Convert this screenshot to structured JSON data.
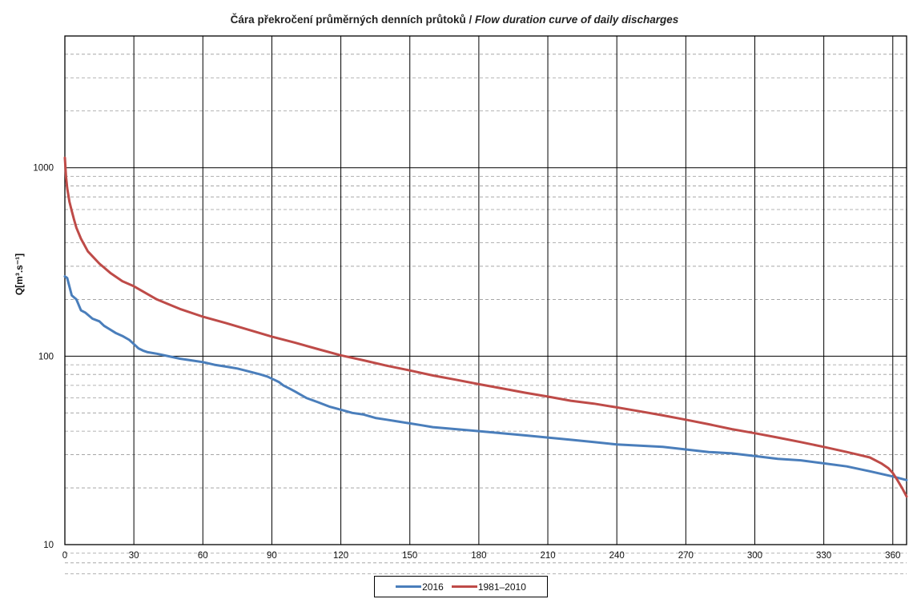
{
  "chart_data": {
    "type": "line",
    "title_cz": "Čára překročení průměrných denních průtoků / ",
    "title_en": "Flow duration curve of daily discharges",
    "xlabel": "",
    "ylabel": "Q[m³.s⁻¹]",
    "xlim": [
      0,
      366
    ],
    "ylim": [
      10,
      5000
    ],
    "yscale": "log",
    "x_ticks": [
      0,
      30,
      60,
      90,
      120,
      150,
      180,
      210,
      240,
      270,
      300,
      330,
      360
    ],
    "y_ticks": [
      10,
      100,
      1000
    ],
    "y_tick_labels": [
      "10",
      "100",
      "1000"
    ],
    "grid": true,
    "legend_position": "bottom",
    "series": [
      {
        "name": "2016",
        "color": "#4a7ebb",
        "x": [
          0,
          1,
          3,
          5,
          7,
          9,
          12,
          15,
          17,
          19,
          22,
          25,
          28,
          30,
          32,
          34,
          36,
          40,
          45,
          50,
          55,
          60,
          65,
          70,
          75,
          80,
          85,
          88,
          91,
          93,
          95,
          98,
          100,
          105,
          110,
          115,
          120,
          125,
          130,
          135,
          140,
          145,
          150,
          155,
          160,
          170,
          180,
          190,
          200,
          210,
          220,
          230,
          240,
          250,
          260,
          270,
          280,
          290,
          300,
          310,
          320,
          330,
          340,
          350,
          360,
          366
        ],
        "y": [
          265,
          260,
          210,
          200,
          175,
          170,
          158,
          153,
          145,
          140,
          133,
          128,
          122,
          116,
          110,
          107,
          105,
          103,
          100,
          97,
          95,
          93,
          90,
          88,
          86,
          83,
          80,
          78,
          75,
          73,
          70,
          67,
          65,
          60,
          57,
          54,
          52,
          50,
          49,
          47,
          46,
          45,
          44,
          43,
          42,
          41,
          40,
          39,
          38,
          37,
          36,
          35,
          34,
          33.5,
          33,
          32,
          31,
          30.5,
          29.5,
          28.5,
          28,
          27,
          26,
          24.5,
          23,
          22
        ]
      },
      {
        "name": "1981–2010",
        "color": "#be4b48",
        "x": [
          0,
          0.5,
          1,
          2,
          3,
          4,
          5,
          7,
          10,
          15,
          20,
          25,
          30,
          40,
          50,
          60,
          70,
          80,
          90,
          100,
          110,
          120,
          130,
          140,
          150,
          160,
          170,
          180,
          190,
          200,
          210,
          220,
          230,
          240,
          250,
          260,
          270,
          280,
          290,
          300,
          310,
          320,
          330,
          340,
          345,
          350,
          355,
          358,
          360,
          362,
          364,
          366
        ],
        "y": [
          1130,
          900,
          780,
          660,
          590,
          530,
          480,
          420,
          360,
          310,
          275,
          250,
          235,
          200,
          178,
          162,
          150,
          138,
          127,
          118,
          109,
          101,
          95,
          89,
          84,
          79,
          75,
          71,
          67.5,
          64,
          61,
          58,
          56,
          53.5,
          51,
          48.5,
          46,
          43.5,
          41,
          39,
          37,
          35,
          33,
          31,
          30,
          29,
          27,
          25.5,
          24,
          22,
          20,
          18
        ]
      }
    ]
  }
}
